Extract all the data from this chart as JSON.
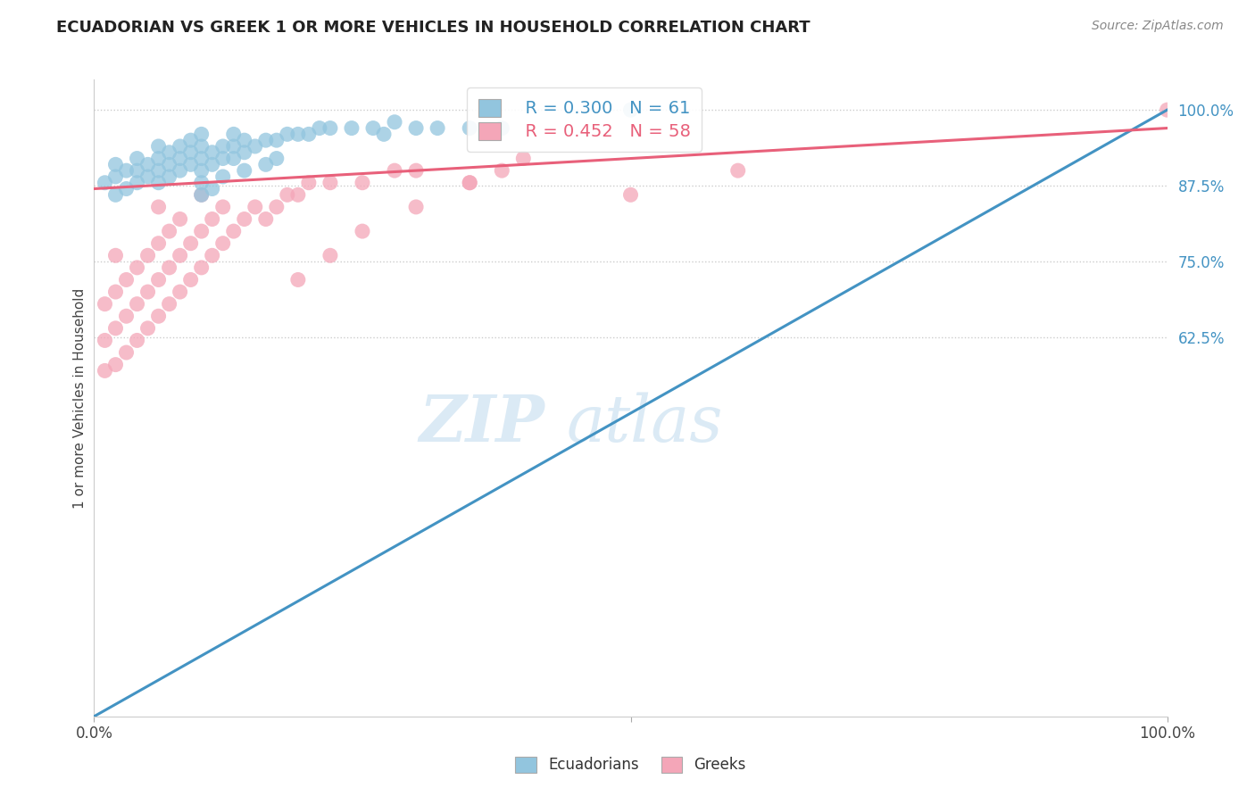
{
  "title": "ECUADORIAN VS GREEK 1 OR MORE VEHICLES IN HOUSEHOLD CORRELATION CHART",
  "source_text": "Source: ZipAtlas.com",
  "ylabel": "1 or more Vehicles in Household",
  "legend_r_blue": "R = 0.300",
  "legend_n_blue": "N = 61",
  "legend_r_pink": "R = 0.452",
  "legend_n_pink": "N = 58",
  "blue_color": "#92c5de",
  "pink_color": "#f4a6b8",
  "blue_line_color": "#4393c3",
  "pink_line_color": "#e8607a",
  "watermark_zip": "ZIP",
  "watermark_atlas": "atlas",
  "ecuadorian_x": [
    0.01,
    0.02,
    0.02,
    0.02,
    0.03,
    0.03,
    0.04,
    0.04,
    0.04,
    0.05,
    0.05,
    0.06,
    0.06,
    0.06,
    0.06,
    0.07,
    0.07,
    0.07,
    0.08,
    0.08,
    0.08,
    0.09,
    0.09,
    0.09,
    0.1,
    0.1,
    0.1,
    0.1,
    0.11,
    0.11,
    0.12,
    0.12,
    0.13,
    0.13,
    0.13,
    0.14,
    0.14,
    0.15,
    0.16,
    0.17,
    0.18,
    0.19,
    0.2,
    0.21,
    0.22,
    0.24,
    0.26,
    0.27,
    0.28,
    0.3,
    0.32,
    0.35,
    0.38,
    0.5,
    0.1,
    0.1,
    0.11,
    0.12,
    0.14,
    0.16,
    0.17
  ],
  "ecuadorian_y": [
    0.88,
    0.86,
    0.89,
    0.91,
    0.87,
    0.9,
    0.88,
    0.9,
    0.92,
    0.89,
    0.91,
    0.88,
    0.9,
    0.92,
    0.94,
    0.89,
    0.91,
    0.93,
    0.9,
    0.92,
    0.94,
    0.91,
    0.93,
    0.95,
    0.9,
    0.92,
    0.94,
    0.96,
    0.91,
    0.93,
    0.92,
    0.94,
    0.92,
    0.94,
    0.96,
    0.93,
    0.95,
    0.94,
    0.95,
    0.95,
    0.96,
    0.96,
    0.96,
    0.97,
    0.97,
    0.97,
    0.97,
    0.96,
    0.98,
    0.97,
    0.97,
    0.97,
    0.97,
    1.0,
    0.86,
    0.88,
    0.87,
    0.89,
    0.9,
    0.91,
    0.92
  ],
  "greek_x": [
    0.01,
    0.01,
    0.01,
    0.02,
    0.02,
    0.02,
    0.02,
    0.03,
    0.03,
    0.03,
    0.04,
    0.04,
    0.04,
    0.05,
    0.05,
    0.05,
    0.06,
    0.06,
    0.06,
    0.06,
    0.07,
    0.07,
    0.07,
    0.08,
    0.08,
    0.08,
    0.09,
    0.09,
    0.1,
    0.1,
    0.1,
    0.11,
    0.11,
    0.12,
    0.12,
    0.13,
    0.14,
    0.15,
    0.16,
    0.17,
    0.18,
    0.19,
    0.2,
    0.22,
    0.25,
    0.28,
    0.3,
    0.35,
    0.38,
    0.4,
    0.5,
    0.6,
    0.19,
    0.22,
    0.25,
    0.3,
    0.35,
    1.0
  ],
  "greek_y": [
    0.57,
    0.62,
    0.68,
    0.58,
    0.64,
    0.7,
    0.76,
    0.6,
    0.66,
    0.72,
    0.62,
    0.68,
    0.74,
    0.64,
    0.7,
    0.76,
    0.66,
    0.72,
    0.78,
    0.84,
    0.68,
    0.74,
    0.8,
    0.7,
    0.76,
    0.82,
    0.72,
    0.78,
    0.74,
    0.8,
    0.86,
    0.76,
    0.82,
    0.78,
    0.84,
    0.8,
    0.82,
    0.84,
    0.82,
    0.84,
    0.86,
    0.86,
    0.88,
    0.88,
    0.88,
    0.9,
    0.9,
    0.88,
    0.9,
    0.92,
    0.86,
    0.9,
    0.72,
    0.76,
    0.8,
    0.84,
    0.88,
    1.0
  ],
  "blue_line_x0": 0.0,
  "blue_line_y0": 0.0,
  "blue_line_x1": 1.0,
  "blue_line_y1": 1.0,
  "pink_line_x0": 0.0,
  "pink_line_y0": 0.87,
  "pink_line_x1": 1.0,
  "pink_line_y1": 0.97,
  "xlim": [
    0.0,
    1.0
  ],
  "ylim": [
    0.0,
    1.05
  ],
  "ytick_vals": [
    0.625,
    0.75,
    0.875,
    1.0
  ],
  "ytick_labels": [
    "62.5%",
    "75.0%",
    "87.5%",
    "100.0%"
  ]
}
